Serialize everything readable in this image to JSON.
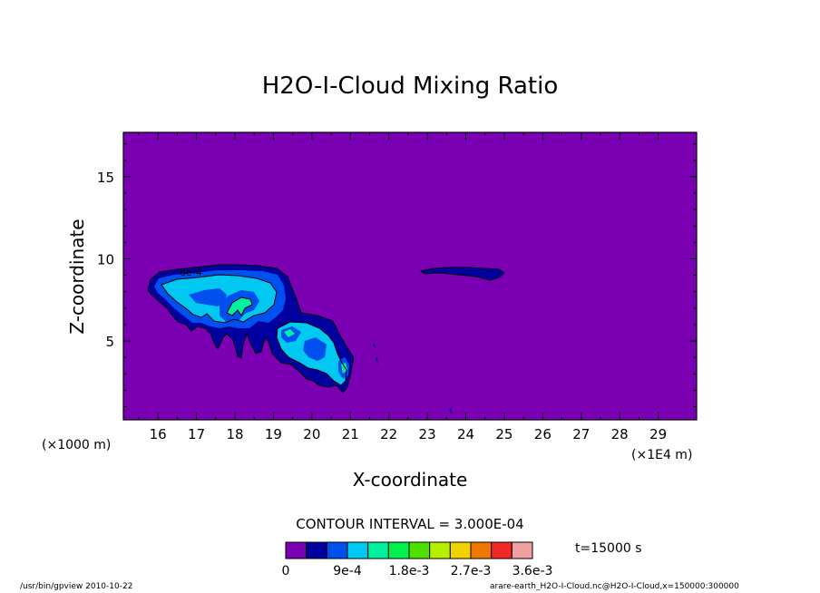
{
  "chart_data": {
    "type": "contour",
    "title": "H2O-I-Cloud Mixing Ratio",
    "xlabel": "X-coordinate",
    "ylabel": "Z-coordinate",
    "x_unit_left": "(×1000 m)",
    "x_unit_right": "(×1E4 m)",
    "x_ticks": [
      "16",
      "17",
      "18",
      "19",
      "20",
      "21",
      "22",
      "23",
      "24",
      "25",
      "26",
      "27",
      "28",
      "29"
    ],
    "y_ticks": [
      "5",
      "10",
      "15"
    ],
    "xlim": [
      15.1,
      30.0
    ],
    "ylim": [
      0.2,
      17.7
    ],
    "contour_interval_label": "CONTOUR INTERVAL = 3.000E-04",
    "contour_interval": 0.0003,
    "inline_contour_label": "6e-4",
    "time_label": "t=15000 s",
    "colorbar": {
      "colors": [
        "#7b00b4",
        "#0000a0",
        "#0050f0",
        "#00c8f0",
        "#00f0a0",
        "#00f050",
        "#50e000",
        "#b4f000",
        "#f0d200",
        "#f07800",
        "#f02828",
        "#f0a0a0"
      ],
      "tick_labels": [
        "0",
        "9e-4",
        "1.8e-3",
        "2.7e-3",
        "3.6e-3"
      ]
    },
    "levels": {
      "background": "#7b00b4",
      "level1": "#0000a0",
      "level2": "#0050f0",
      "level3": "#00c8f0",
      "level4": "#00f0a0"
    }
  },
  "footer": {
    "left": "/usr/bin/gpview   2010-10-22",
    "right": "arare-earth_H2O-I-Cloud.nc@H2O-I-Cloud,x=150000:300000"
  }
}
